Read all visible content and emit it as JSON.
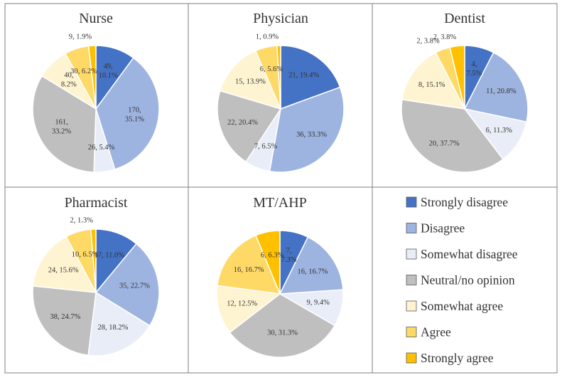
{
  "chart_data": [
    {
      "type": "pie",
      "title": "Nurse",
      "categories": [
        "Strongly disagree",
        "Disagree",
        "Somewhat disagree",
        "Neutral/no opinion",
        "Somewhat agree",
        "Agree",
        "Strongly agree"
      ],
      "values": [
        49,
        170,
        26,
        161,
        40,
        30,
        9
      ],
      "labels": [
        "49,\n10.1%",
        "170,\n35.1%",
        "26, 5.4%",
        "161,\n33.2%",
        "40,\n8.2%",
        "30, 6.2%",
        "9, 1.9%"
      ]
    },
    {
      "type": "pie",
      "title": "Physician",
      "categories": [
        "Strongly disagree",
        "Disagree",
        "Somewhat disagree",
        "Neutral/no opinion",
        "Somewhat agree",
        "Agree",
        "Strongly agree"
      ],
      "values": [
        21,
        36,
        7,
        22,
        15,
        6,
        1
      ],
      "labels": [
        "21, 19.4%",
        "36, 33.3%",
        "7, 6.5%",
        "22, 20.4%",
        "15, 13.9%",
        "6, 5.6%",
        "1, 0.9%"
      ]
    },
    {
      "type": "pie",
      "title": "Dentist",
      "categories": [
        "Strongly disagree",
        "Disagree",
        "Somewhat disagree",
        "Neutral/no opinion",
        "Somewhat agree",
        "Agree",
        "Strongly agree"
      ],
      "values": [
        4,
        11,
        6,
        20,
        8,
        2,
        2
      ],
      "labels": [
        "4,\n7.5%",
        "11, 20.8%",
        "6, 11.3%",
        "20, 37.7%",
        "8, 15.1%",
        "2, 3.8%",
        "2, 3.8%"
      ]
    },
    {
      "type": "pie",
      "title": "Pharmacist",
      "categories": [
        "Strongly disagree",
        "Disagree",
        "Somewhat disagree",
        "Neutral/no opinion",
        "Somewhat agree",
        "Agree",
        "Strongly agree"
      ],
      "values": [
        17,
        35,
        28,
        38,
        24,
        10,
        2
      ],
      "labels": [
        "17, 11.0%",
        "35, 22.7%",
        "28, 18.2%",
        "38, 24.7%",
        "24, 15.6%",
        "10, 6.5%",
        "2, 1.3%"
      ]
    },
    {
      "type": "pie",
      "title": "MT/AHP",
      "categories": [
        "Strongly disagree",
        "Disagree",
        "Somewhat disagree",
        "Neutral/no opinion",
        "Somewhat agree",
        "Agree",
        "Strongly agree"
      ],
      "values": [
        7,
        16,
        9,
        30,
        12,
        16,
        6
      ],
      "labels": [
        "7,\n7.3%",
        "16, 16.7%",
        "9, 9.4%",
        "30, 31.3%",
        "12, 12.5%",
        "16, 16.7%",
        "6, 6.3%"
      ]
    }
  ],
  "legend": {
    "items": [
      "Strongly disagree",
      "Disagree",
      "Somewhat disagree",
      "Neutral/no opinion",
      "Somewhat agree",
      "Agree",
      "Strongly agree"
    ]
  },
  "colors": [
    "#4472c4",
    "#9db3e0",
    "#e8edf7",
    "#bfbfbf",
    "#fff4d1",
    "#ffd966",
    "#ffc000"
  ]
}
